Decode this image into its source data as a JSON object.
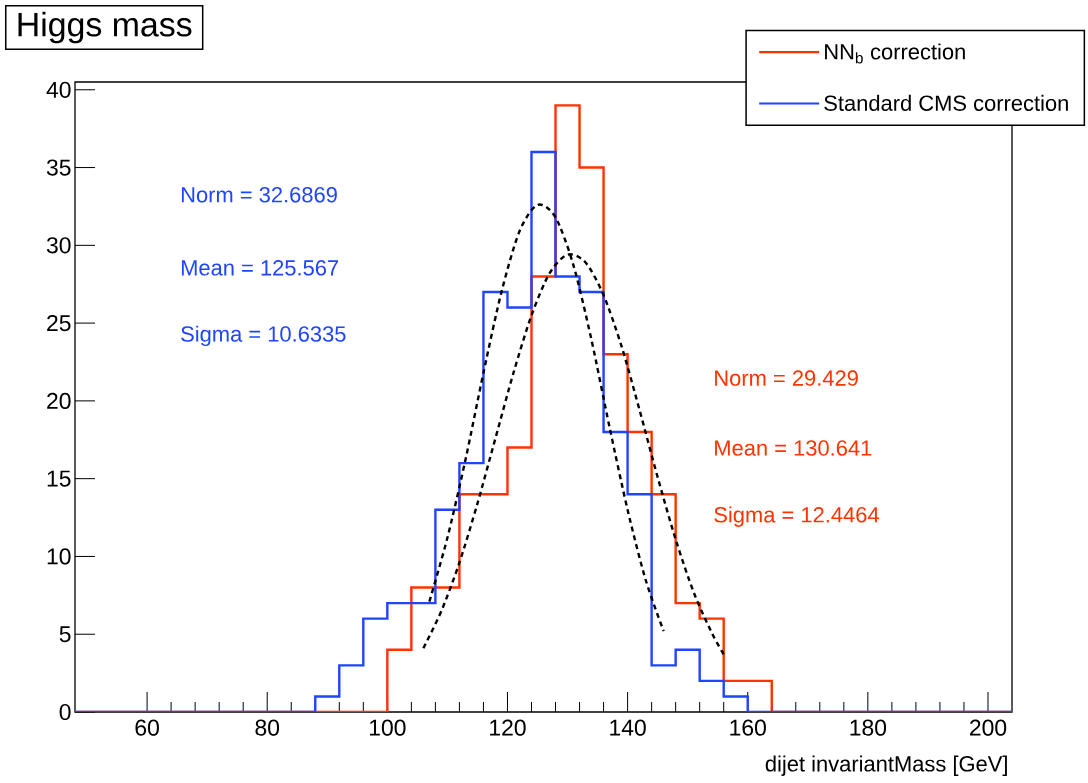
{
  "chart_data": {
    "type": "histogram",
    "title": "Higgs mass",
    "xlabel": "dijet invariantMass [GeV]",
    "bins": [
      48,
      52,
      56,
      60,
      64,
      68,
      72,
      76,
      80,
      84,
      88,
      92,
      96,
      100,
      104,
      108,
      112,
      116,
      120,
      124,
      128,
      132,
      136,
      140,
      144,
      148,
      152,
      156,
      160,
      164,
      168,
      172,
      176,
      180,
      184,
      188,
      192,
      196,
      200,
      204
    ],
    "series": [
      {
        "name": "NN$_{b}$ correction",
        "color": "#ff3300",
        "values": [
          0,
          0,
          0,
          0,
          0,
          0,
          0,
          0,
          0,
          0,
          0,
          0,
          0,
          4,
          8,
          8,
          14,
          14,
          17,
          28,
          39,
          35,
          23,
          18,
          14,
          7,
          6,
          2,
          2,
          0,
          0,
          0,
          0,
          0,
          0,
          0,
          0,
          0,
          0
        ]
      },
      {
        "name": "Standard CMS correction",
        "color": "#1f45ff",
        "values": [
          0,
          0,
          0,
          0,
          0,
          0,
          0,
          0,
          0,
          0,
          1,
          3,
          6,
          7,
          7,
          13,
          16,
          27,
          26,
          36,
          28,
          27,
          18,
          14,
          3,
          4,
          2,
          1,
          0,
          0,
          0,
          0,
          0,
          0,
          0,
          0,
          0,
          0,
          0
        ]
      },
      {
        "type": "line",
        "color": "#000000",
        "line_style": "dashed",
        "x": [
          107,
          110,
          113,
          116,
          119,
          122,
          125,
          128,
          131,
          134,
          137,
          140,
          143,
          146
        ],
        "values": [
          7.1,
          11.2,
          16.2,
          21.8,
          27.0,
          30.9,
          32.6,
          31.8,
          28.7,
          23.9,
          18.3,
          13.0,
          8.5,
          5.2
        ]
      },
      {
        "type": "line",
        "color": "#000000",
        "line_style": "dashed",
        "x": [
          106,
          109,
          112,
          115,
          118,
          121,
          124,
          127,
          130,
          133,
          136,
          139,
          142,
          145,
          148,
          151,
          154,
          156
        ],
        "values": [
          4.1,
          6.5,
          9.6,
          13.4,
          17.6,
          21.8,
          25.5,
          28.2,
          29.4,
          28.9,
          26.8,
          23.5,
          19.4,
          15.1,
          11.1,
          7.7,
          5.1,
          3.7
        ]
      }
    ],
    "xlim": [
      48,
      204
    ],
    "ylim": [
      0,
      40.5
    ],
    "xticks": [
      60,
      80,
      100,
      120,
      140,
      160,
      180,
      200
    ],
    "yticks": [
      0,
      5,
      10,
      15,
      20,
      25,
      30,
      35,
      40
    ],
    "legend": "top right",
    "annotations": [
      "Norm = 32.6869",
      "Mean = 125.567",
      "Sigma = 10.6335",
      "Norm = 29.429",
      "Mean = 130.641",
      "Sigma = 12.4464"
    ]
  }
}
